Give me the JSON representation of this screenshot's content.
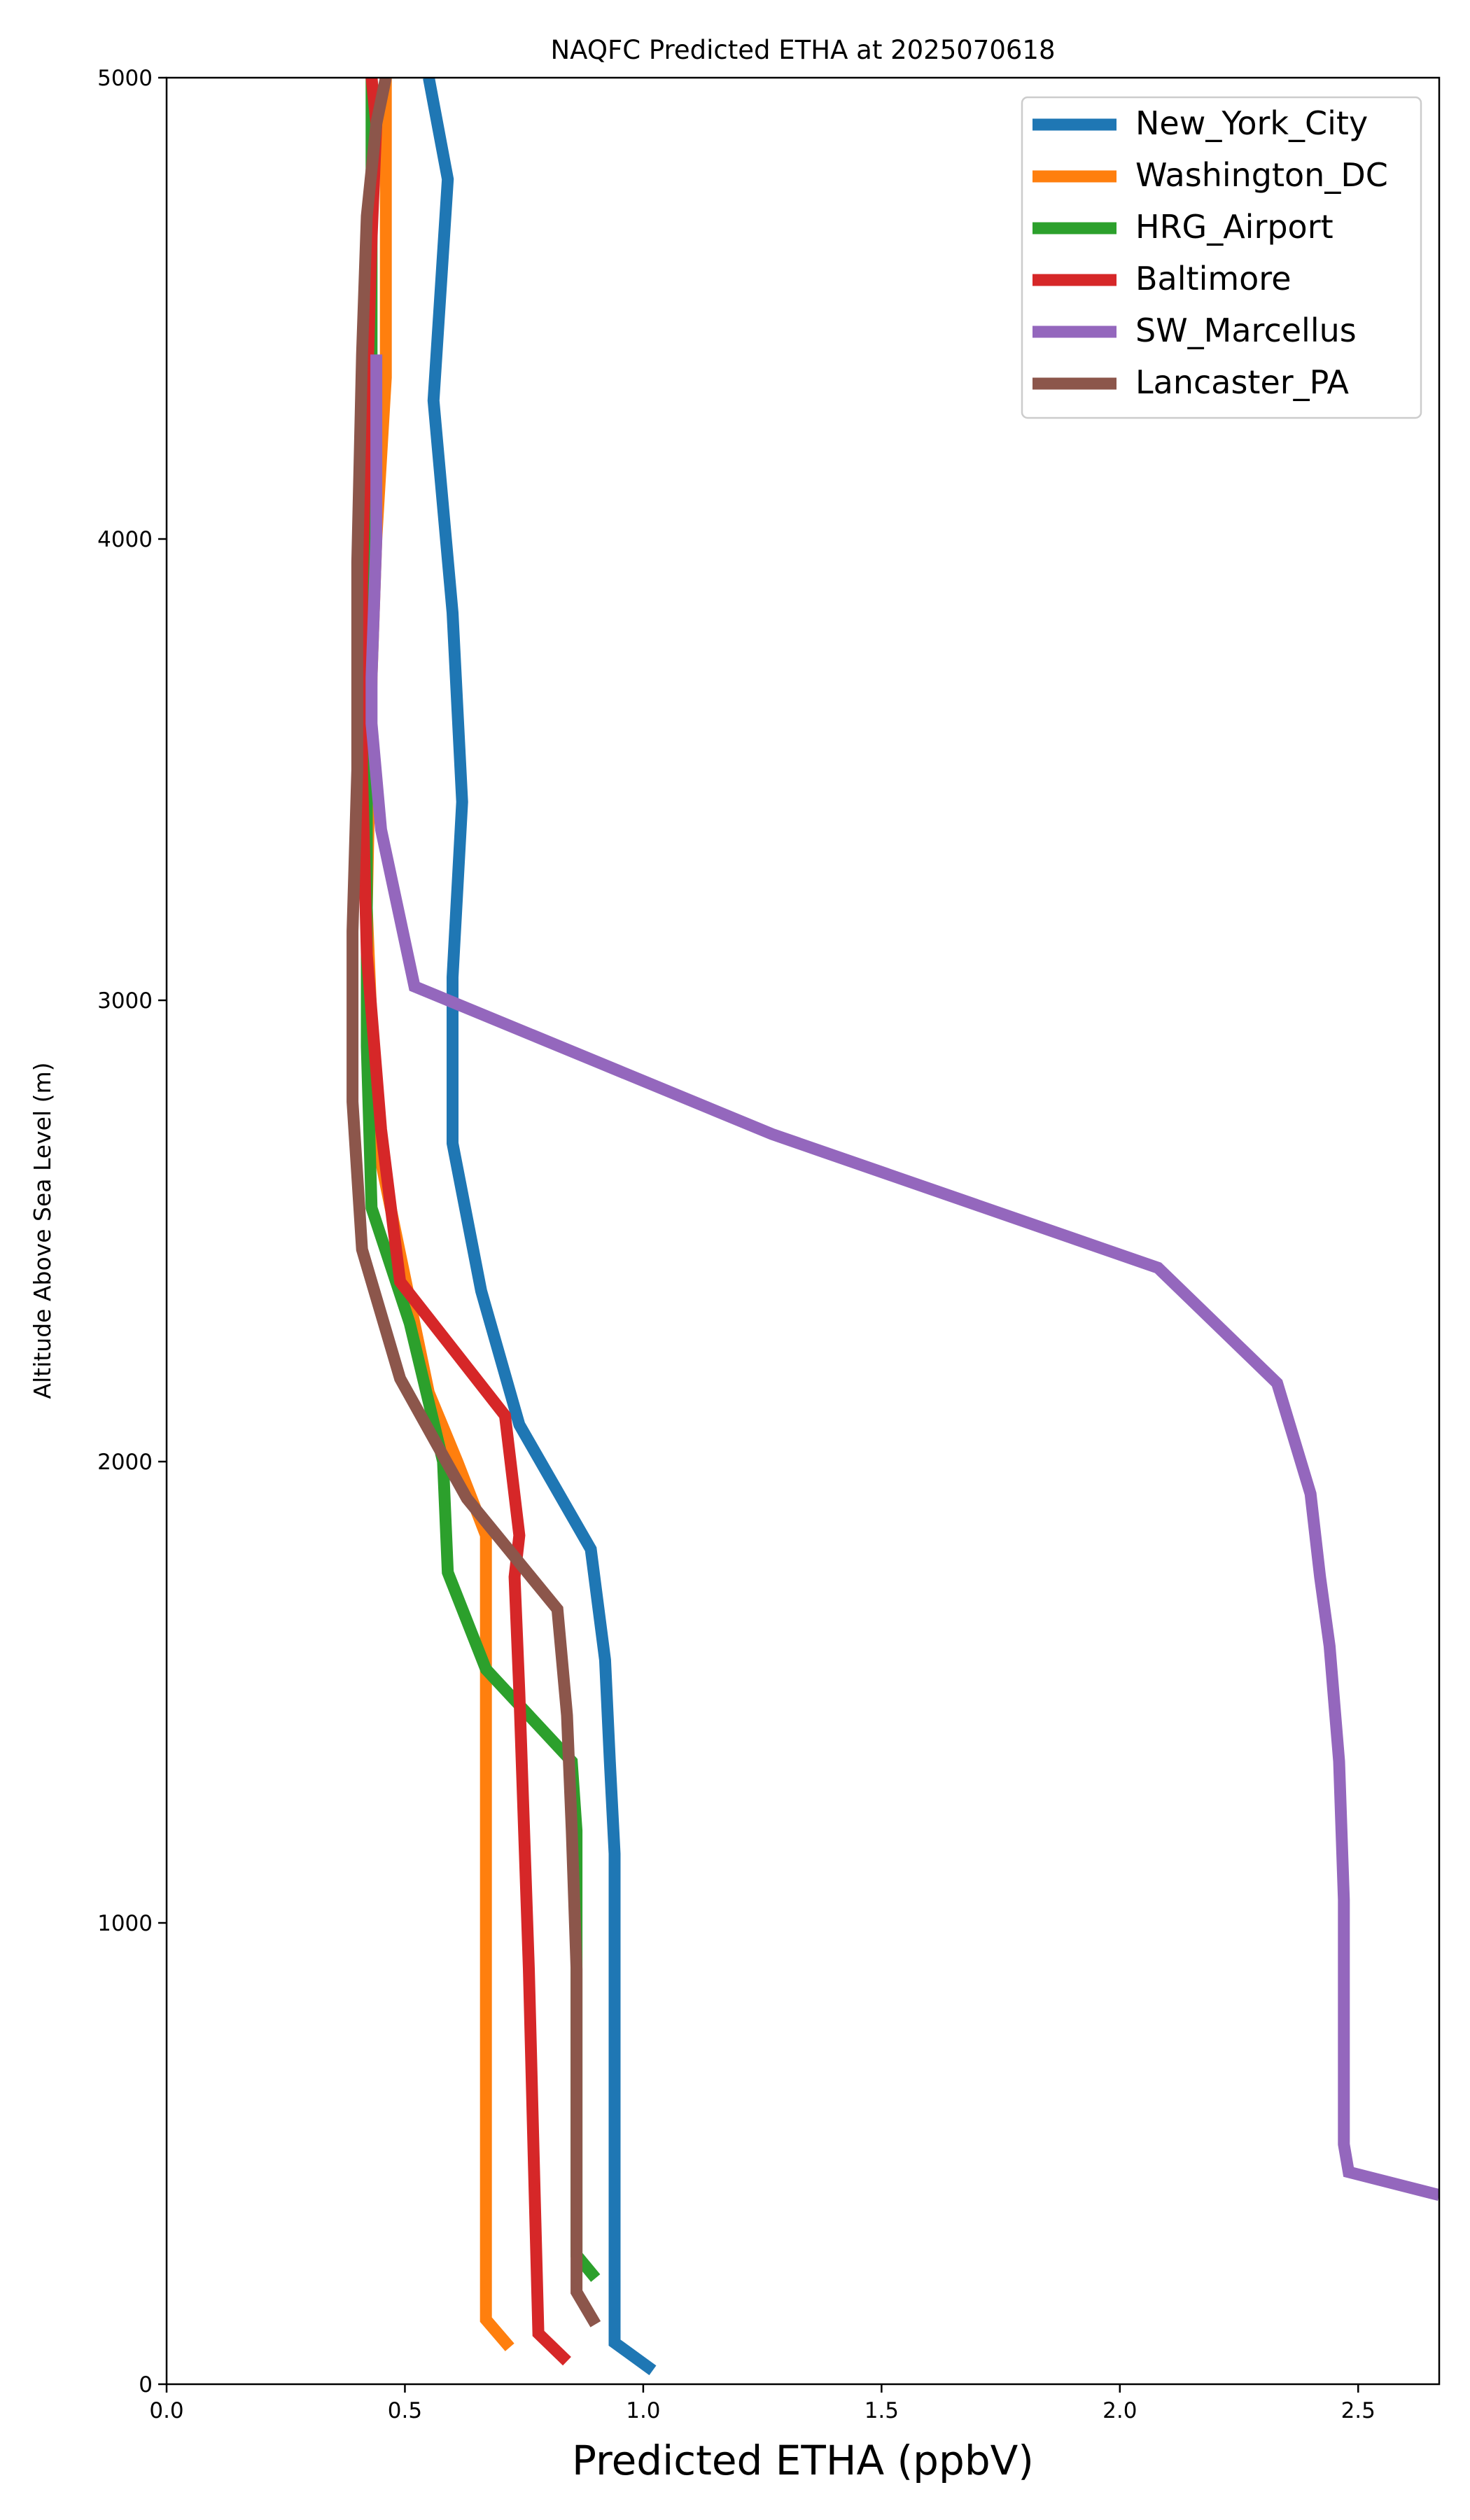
{
  "chart_data": {
    "type": "line",
    "title": "NAQFC Predicted ETHA at 2025070618",
    "xlabel": "Predicted ETHA (ppbV)",
    "ylabel": "Altitude Above Sea Level (m)",
    "xlim": [
      0,
      2.67
    ],
    "ylim": [
      0,
      5000
    ],
    "xticks": [
      0.0,
      0.5,
      1.0,
      1.5,
      2.0,
      2.5
    ],
    "xtick_labels": [
      "0.0",
      "0.5",
      "1.0",
      "1.5",
      "2.0",
      "2.5"
    ],
    "yticks": [
      0,
      1000,
      2000,
      3000,
      4000,
      5000
    ],
    "ytick_labels": [
      "0",
      "1000",
      "2000",
      "3000",
      "4000",
      "5000"
    ],
    "grid": false,
    "legend": {
      "position": "upper right"
    },
    "series": [
      {
        "name": "New_York_City",
        "color": "#1f77b4",
        "x": [
          1.02,
          0.94,
          0.94,
          0.94,
          0.94,
          0.93,
          0.92,
          0.89,
          0.74,
          0.66,
          0.6,
          0.6,
          0.62,
          0.6,
          0.56,
          0.59,
          0.55,
          0.54
        ],
        "y": [
          30,
          90,
          500,
          900,
          1150,
          1350,
          1570,
          1810,
          2080,
          2370,
          2690,
          3050,
          3430,
          3840,
          4300,
          4780,
          5000,
          5000
        ]
      },
      {
        "name": "Washington_DC",
        "color": "#ff7f0e",
        "x": [
          0.72,
          0.67,
          0.67,
          0.67,
          0.67,
          0.67,
          0.67,
          0.67,
          0.61,
          0.55,
          0.5,
          0.44,
          0.42,
          0.43,
          0.44,
          0.46,
          0.46,
          0.46
        ],
        "y": [
          80,
          140,
          500,
          900,
          1200,
          1500,
          1700,
          1840,
          2000,
          2150,
          2400,
          2700,
          3200,
          3700,
          4000,
          4350,
          4800,
          5000
        ]
      },
      {
        "name": "HRG_Airport",
        "color": "#2ca02c",
        "x": [
          0.9,
          0.86,
          0.86,
          0.86,
          0.86,
          0.85,
          0.67,
          0.59,
          0.58,
          0.51,
          0.43,
          0.42,
          0.42,
          0.42,
          0.43,
          0.43,
          0.43,
          0.43
        ],
        "y": [
          230,
          280,
          600,
          1000,
          1200,
          1350,
          1550,
          1760,
          2000,
          2300,
          2550,
          2900,
          3200,
          3700,
          4100,
          4500,
          4800,
          5000
        ]
      },
      {
        "name": "Baltimore",
        "color": "#d62728",
        "x": [
          0.84,
          0.78,
          0.77,
          0.76,
          0.75,
          0.74,
          0.73,
          0.74,
          0.71,
          0.49,
          0.45,
          0.42,
          0.41,
          0.41,
          0.42,
          0.43,
          0.44,
          0.43
        ],
        "y": [
          50,
          110,
          500,
          900,
          1200,
          1500,
          1750,
          1840,
          2100,
          2390,
          2720,
          3100,
          3500,
          3900,
          4300,
          4650,
          4900,
          5000
        ]
      },
      {
        "name": "SW_Marcellus",
        "color": "#9467bd",
        "x": [
          2.67,
          2.48,
          2.47,
          2.47,
          2.47,
          2.46,
          2.44,
          2.42,
          2.4,
          2.33,
          2.08,
          1.27,
          0.52,
          0.45,
          0.43,
          0.43,
          0.44,
          0.44
        ],
        "y": [
          410,
          460,
          520,
          700,
          1050,
          1350,
          1600,
          1750,
          1930,
          2170,
          2420,
          2710,
          3030,
          3370,
          3600,
          3700,
          4000,
          4400
        ]
      },
      {
        "name": "Lancaster_PA",
        "color": "#8c564b",
        "x": [
          0.9,
          0.86,
          0.86,
          0.86,
          0.85,
          0.84,
          0.82,
          0.63,
          0.49,
          0.41,
          0.39,
          0.39,
          0.4,
          0.4,
          0.41,
          0.42,
          0.44,
          0.46
        ],
        "y": [
          130,
          200,
          500,
          900,
          1200,
          1450,
          1680,
          1920,
          2180,
          2460,
          2780,
          3150,
          3500,
          3950,
          4400,
          4700,
          4900,
          5000
        ]
      }
    ]
  }
}
